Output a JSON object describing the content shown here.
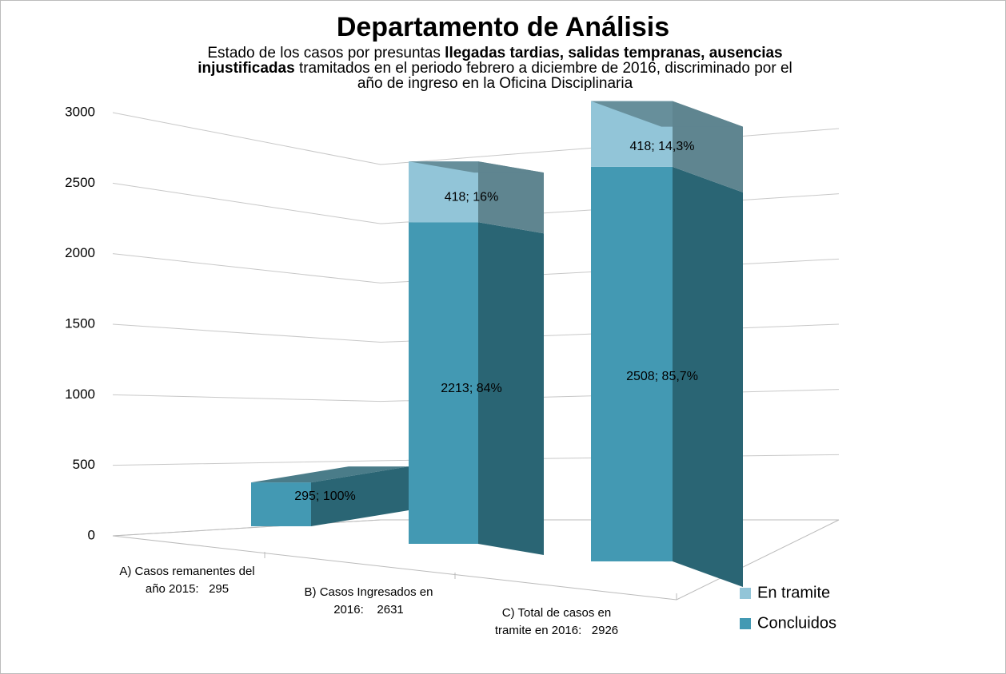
{
  "chart_data": {
    "type": "bar3d-stacked",
    "title": "Departamento de Análisis",
    "subtitle": [
      {
        "text": "Estado de los casos  por presuntas ",
        "bold": false
      },
      {
        "text": "llegadas tardias, salidas tempranas, ausencias injustificadas",
        "bold": true
      },
      {
        "text": " tramitados en el periodo febrero a  diciembre de 2016, discriminado por  el año de ingreso en la Oficina Disciplinaria",
        "bold": false
      }
    ],
    "categories": [
      "A) Casos remanentes del año 2015:   295",
      "B) Casos Ingresados en 2016:    2631",
      "C) Total de casos en tramite en 2016:   2926"
    ],
    "series": [
      {
        "name": "Concluidos",
        "color": "#4399b3",
        "side_color": "#2a6574",
        "values": [
          295,
          2213,
          2508
        ],
        "value_labels": [
          "295; 100%",
          "2213; 84%",
          "2508; 85,7%"
        ]
      },
      {
        "name": "En tramite",
        "color": "#92c5d8",
        "side_color": "#5f8590",
        "values": [
          null,
          418,
          418
        ],
        "value_labels": [
          null,
          "418; 16%",
          "418; 14,3%"
        ]
      }
    ],
    "ylim": [
      0,
      3000
    ],
    "yticks": [
      0,
      500,
      1000,
      1500,
      2000,
      2500,
      3000
    ],
    "grid": true,
    "legend": "right"
  }
}
